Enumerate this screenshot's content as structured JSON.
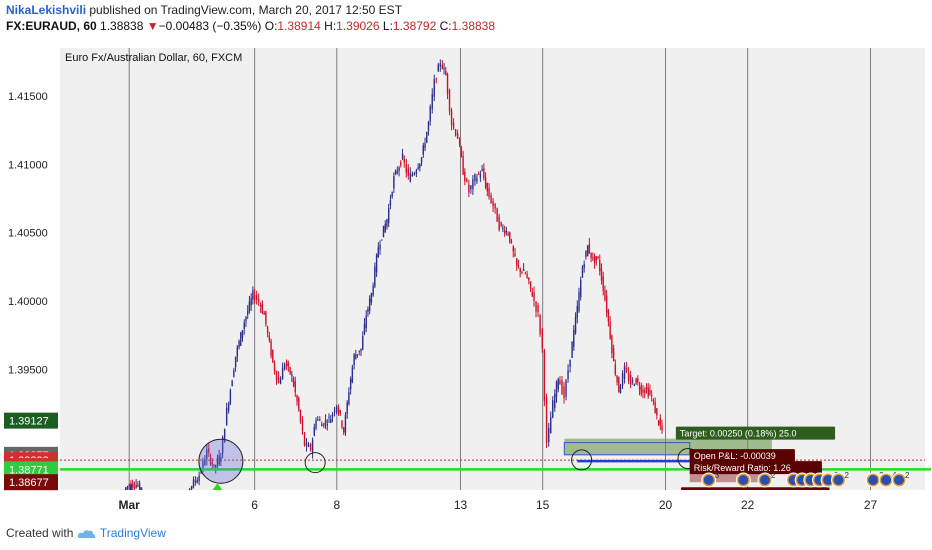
{
  "header": {
    "author": "NikaLekishvili",
    "published_text": " published on TradingView.com, March 20, 2017 12:50 EST",
    "symbol": "FX:EURAUD, 60",
    "last": "1.38838",
    "change_arrow": "▼",
    "change": "−0.00483 (−0.35%)",
    "open_label": "O:",
    "open": "1.38914",
    "high_label": "H:",
    "high": "1.39026",
    "low_label": "L:",
    "low": "1.38792",
    "close_label": "C:",
    "close": "1.38838"
  },
  "footer": {
    "created_with": "Created with",
    "brand": "TradingView"
  },
  "colors": {
    "up_candle": "#2b2f8a",
    "down_candle": "#d0102a",
    "grid": "#555555",
    "plot_bg": "#f0f0f0",
    "support_line": "#22dd22",
    "target_zone": "#6b9a4e",
    "stop_zone": "#9a3f3f"
  },
  "chart_data": {
    "type": "candlestick",
    "title": "Euro Fx/Australian Dollar, 60, FXCM",
    "ylim": [
      1.3862,
      1.4185
    ],
    "y_ticks": [
      "1.41500",
      "1.41000",
      "1.40500",
      "1.40000",
      "1.39500"
    ],
    "y_tick_values": [
      1.415,
      1.41,
      1.405,
      1.4,
      1.395
    ],
    "x_ticks": [
      "Mar",
      "6",
      "8",
      "13",
      "15",
      "20",
      "22",
      "27"
    ],
    "x_tick_values": [
      0.08,
      0.225,
      0.32,
      0.463,
      0.558,
      0.7,
      0.795,
      0.937
    ],
    "price_path": [
      [
        0.076,
        1.3862
      ],
      [
        0.082,
        1.3866
      ],
      [
        0.09,
        1.3866
      ],
      [
        0.094,
        1.3864
      ],
      [
        0.15,
        1.3862
      ],
      [
        0.163,
        1.3873
      ],
      [
        0.172,
        1.389
      ],
      [
        0.18,
        1.3878
      ],
      [
        0.188,
        1.3888
      ],
      [
        0.195,
        1.392
      ],
      [
        0.205,
        1.396
      ],
      [
        0.215,
        1.3985
      ],
      [
        0.225,
        1.4005
      ],
      [
        0.232,
        1.4
      ],
      [
        0.238,
        1.399
      ],
      [
        0.248,
        1.3955
      ],
      [
        0.255,
        1.394
      ],
      [
        0.262,
        1.3955
      ],
      [
        0.27,
        1.3945
      ],
      [
        0.278,
        1.392
      ],
      [
        0.285,
        1.3895
      ],
      [
        0.292,
        1.3892
      ],
      [
        0.298,
        1.3915
      ],
      [
        0.305,
        1.391
      ],
      [
        0.315,
        1.3915
      ],
      [
        0.322,
        1.3925
      ],
      [
        0.33,
        1.3905
      ],
      [
        0.336,
        1.3935
      ],
      [
        0.342,
        1.396
      ],
      [
        0.35,
        1.3965
      ],
      [
        0.356,
        1.399
      ],
      [
        0.362,
        1.4005
      ],
      [
        0.37,
        1.404
      ],
      [
        0.38,
        1.406
      ],
      [
        0.388,
        1.409
      ],
      [
        0.398,
        1.4105
      ],
      [
        0.405,
        1.409
      ],
      [
        0.412,
        1.4095
      ],
      [
        0.42,
        1.4105
      ],
      [
        0.428,
        1.413
      ],
      [
        0.435,
        1.416
      ],
      [
        0.442,
        1.4175
      ],
      [
        0.448,
        1.4165
      ],
      [
        0.455,
        1.413
      ],
      [
        0.462,
        1.412
      ],
      [
        0.468,
        1.4095
      ],
      [
        0.475,
        1.408
      ],
      [
        0.482,
        1.409
      ],
      [
        0.49,
        1.4095
      ],
      [
        0.496,
        1.408
      ],
      [
        0.503,
        1.407
      ],
      [
        0.51,
        1.4055
      ],
      [
        0.52,
        1.405
      ],
      [
        0.53,
        1.4025
      ],
      [
        0.54,
        1.402
      ],
      [
        0.548,
        1.4005
      ],
      [
        0.555,
        1.399
      ],
      [
        0.56,
        1.3965
      ],
      [
        0.565,
        1.3895
      ],
      [
        0.572,
        1.3925
      ],
      [
        0.578,
        1.3945
      ],
      [
        0.585,
        1.393
      ],
      [
        0.592,
        1.396
      ],
      [
        0.6,
        1.3995
      ],
      [
        0.606,
        1.4025
      ],
      [
        0.612,
        1.404
      ],
      [
        0.618,
        1.403
      ],
      [
        0.624,
        1.403
      ],
      [
        0.63,
        1.401
      ],
      [
        0.636,
        1.3985
      ],
      [
        0.642,
        1.3955
      ],
      [
        0.648,
        1.3935
      ],
      [
        0.655,
        1.395
      ],
      [
        0.662,
        1.394
      ],
      [
        0.668,
        1.3942
      ],
      [
        0.674,
        1.3935
      ],
      [
        0.68,
        1.3935
      ],
      [
        0.686,
        1.393
      ],
      [
        0.692,
        1.3915
      ],
      [
        0.698,
        1.3905
      ]
    ],
    "support_level": 1.38771,
    "current_level": 1.38838,
    "price_labels": [
      {
        "text": "1.39127",
        "value": 1.39127,
        "bg": "#1b5e20"
      },
      {
        "text": "1.38877",
        "value": 1.38877,
        "bg": "#666666"
      },
      {
        "text": "1.38838",
        "value": 1.38838,
        "bg": "#d32f2f"
      },
      {
        "text": "09:54",
        "value": 1.38795,
        "bg": "#d32f2f"
      },
      {
        "text": "1.38771",
        "value": 1.38771,
        "bg": "#2ecc40"
      },
      {
        "text": "1.38677",
        "value": 1.38677,
        "bg": "#7a0a0a"
      }
    ],
    "position": {
      "target_label": "Target: 0.00250 (0.18%) 25.0",
      "stop_label": "Stop: 0.00200 (0.14%) 20.0",
      "pnl_label": "Open P&L: -0.00039",
      "rr_label": "Risk/Reward Ratio: 1.26",
      "entry": 1.38877,
      "target": 1.39127,
      "stop": 1.38677
    },
    "markers": [
      {
        "x": 0.186,
        "y": 1.3883,
        "label": ""
      },
      {
        "x": 0.295,
        "y": 1.3882,
        "label": ""
      },
      {
        "x": 0.603,
        "y": 1.3884,
        "label": ""
      },
      {
        "x": 0.726,
        "y": 1.3885,
        "label": ""
      }
    ],
    "events": [
      {
        "x": 0.75,
        "count": "3"
      },
      {
        "x": 0.79,
        "count": ""
      },
      {
        "x": 0.815,
        "count": "2"
      },
      {
        "x": 0.848,
        "count": ""
      },
      {
        "x": 0.858,
        "count": ""
      },
      {
        "x": 0.868,
        "count": ""
      },
      {
        "x": 0.878,
        "count": ""
      },
      {
        "x": 0.888,
        "count": "2"
      },
      {
        "x": 0.9,
        "count": "2"
      },
      {
        "x": 0.94,
        "count": "2"
      },
      {
        "x": 0.955,
        "count": "4"
      },
      {
        "x": 0.97,
        "count": "2"
      }
    ]
  }
}
